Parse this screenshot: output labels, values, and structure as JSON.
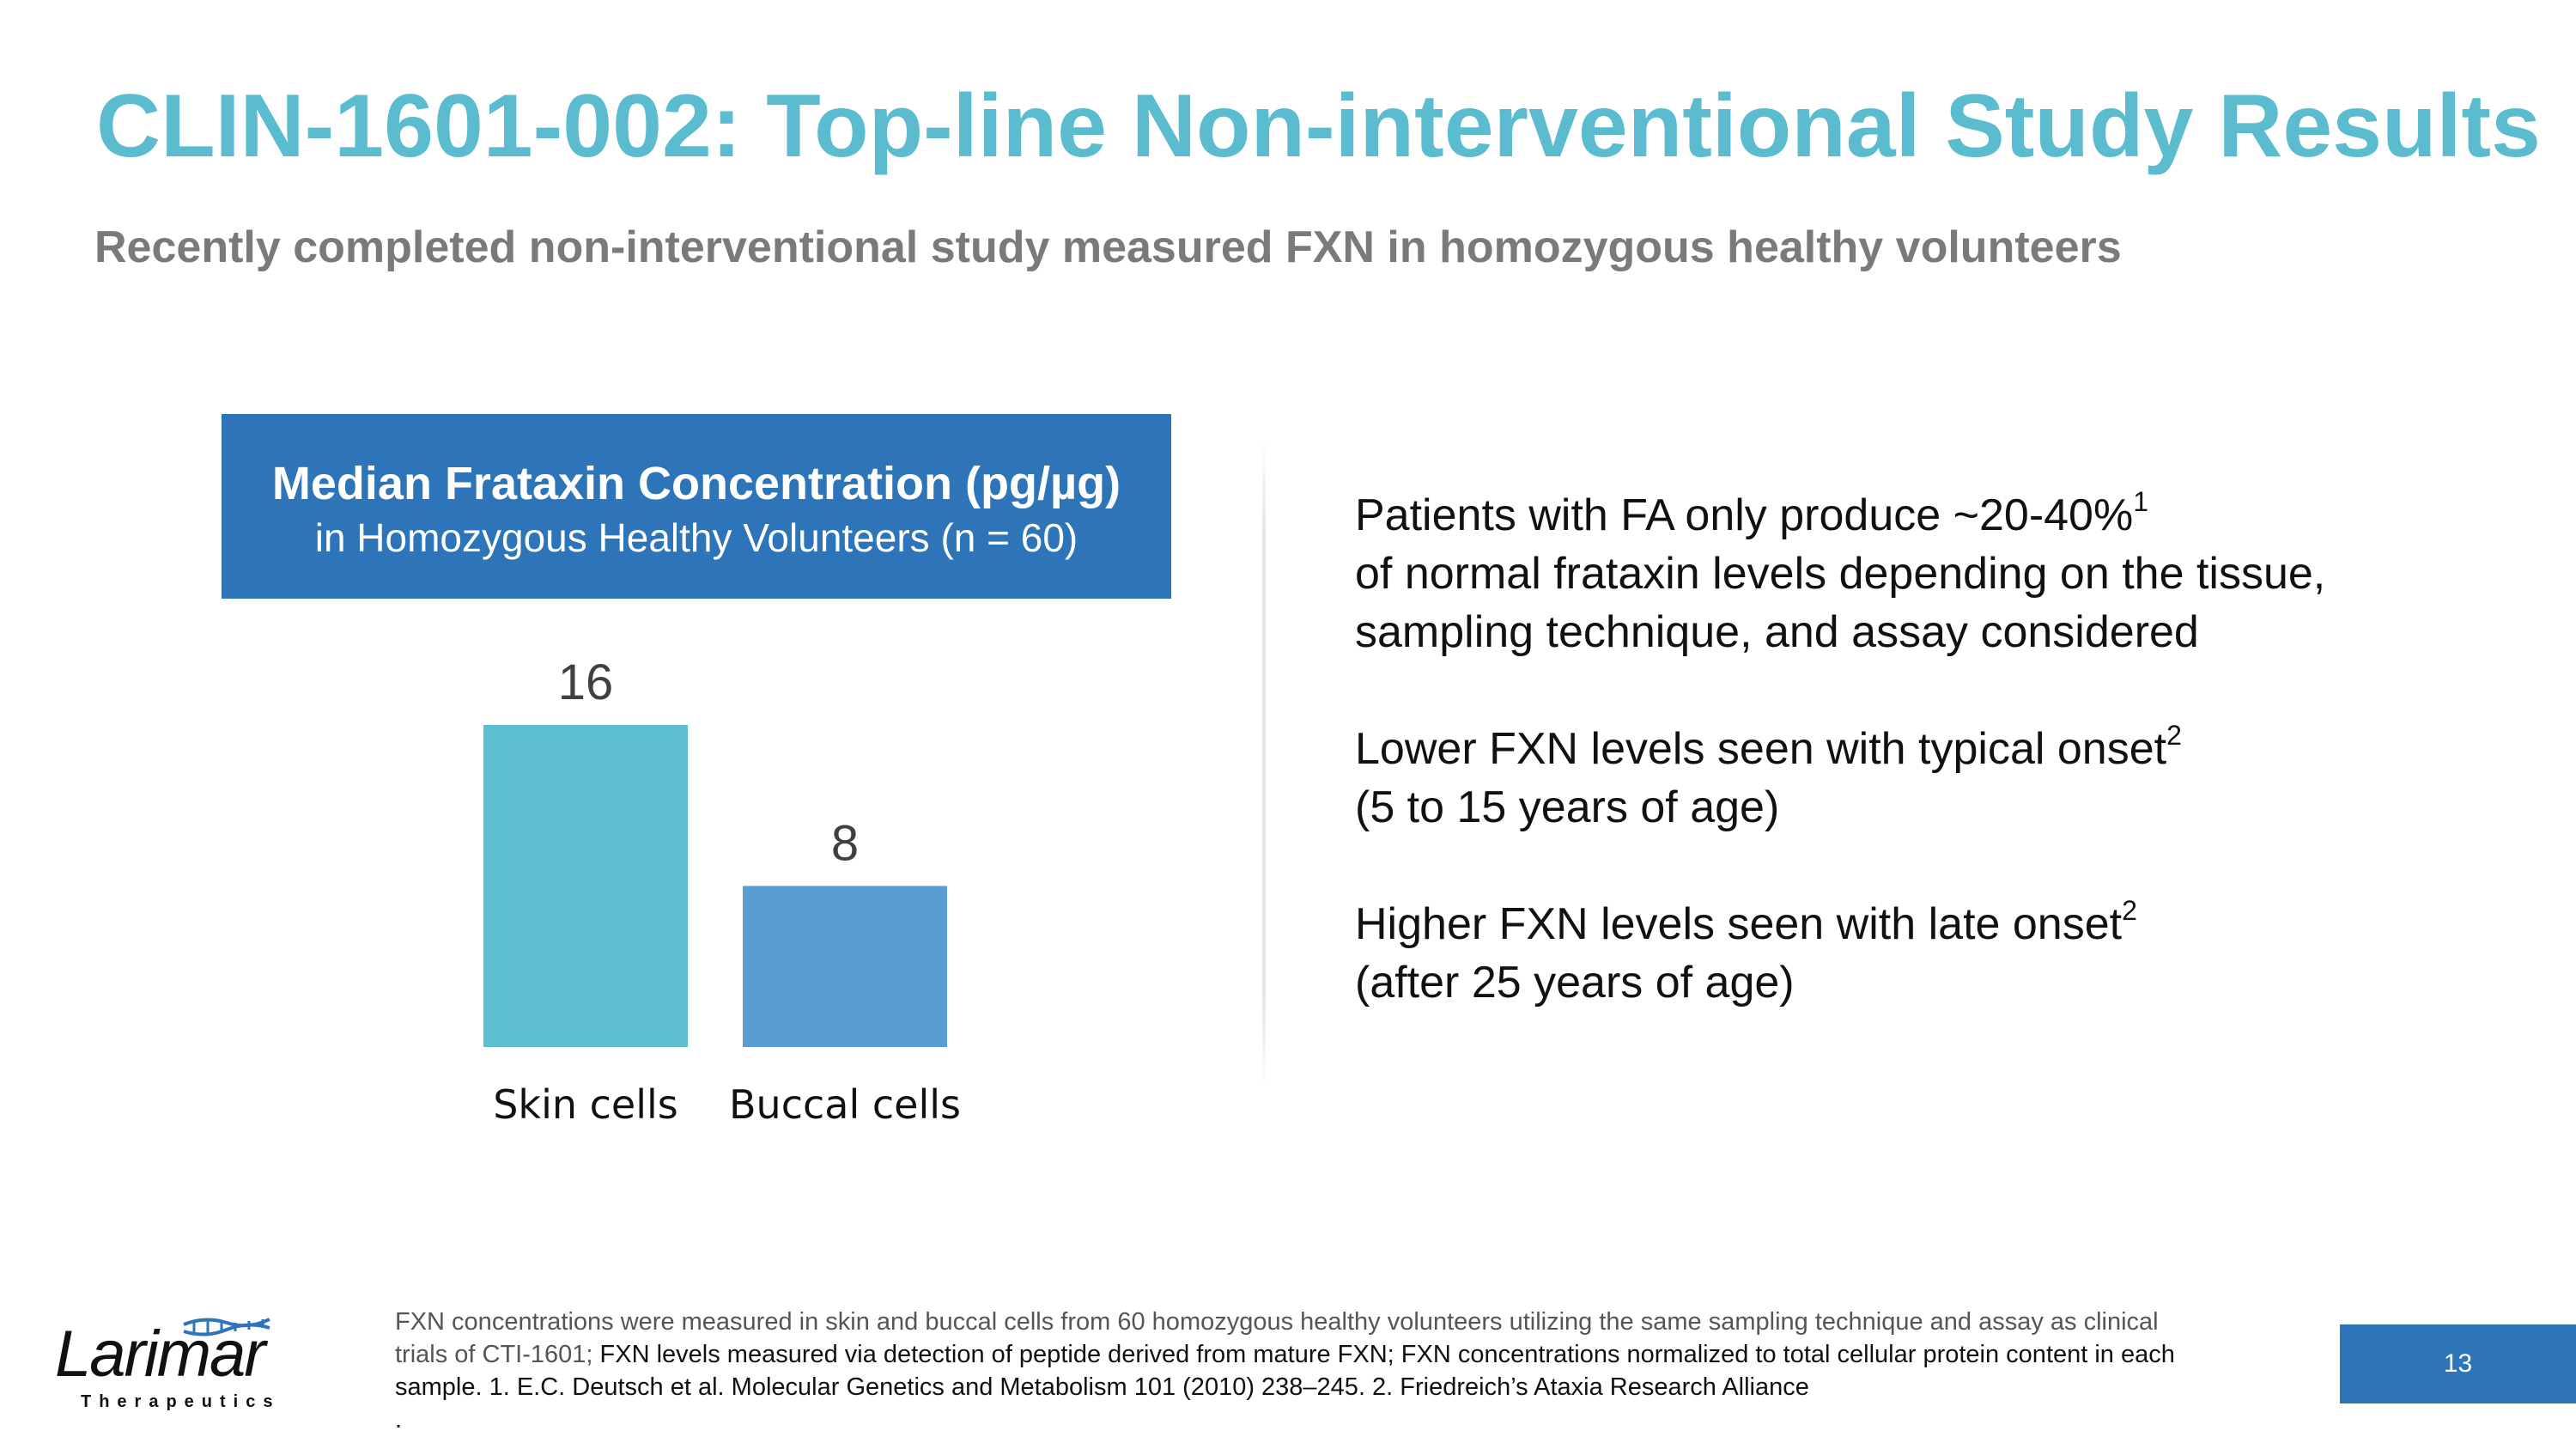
{
  "slide": {
    "title": "CLIN-1601-002: Top-line Non-interventional Study Results",
    "subtitle": "Recently completed non-interventional study measured FXN in homozygous healthy volunteers",
    "page_number": "13"
  },
  "chart_header": {
    "title": "Median Frataxin Concentration (pg/µg)",
    "subtitle": "in Homozygous Healthy Volunteers (n = 60)"
  },
  "chart_data": {
    "type": "bar",
    "title": "Median Frataxin Concentration (pg/µg)",
    "subtitle": "in Homozygous Healthy Volunteers (n = 60)",
    "categories": [
      "Skin cells",
      "Buccal cells"
    ],
    "values": [
      16,
      8
    ],
    "colors": [
      "#5fbed2",
      "#5b9bd4"
    ],
    "xlabel": "",
    "ylabel": "",
    "ylim": [
      0,
      16
    ],
    "grid": false,
    "legend": "none"
  },
  "bullets": [
    {
      "text": "Patients with FA only produce ~20-40%",
      "sup": "1",
      "text2": " of normal frataxin levels depending on the tissue, sampling technique, and assay considered"
    },
    {
      "text": "Lower FXN levels seen with typical onset",
      "sup": "2",
      "text2": " (5 to 15 years of age)"
    },
    {
      "text": "Higher FXN levels seen with late onset",
      "sup": "2",
      "text2": " (after 25 years of age)"
    }
  ],
  "footnote": {
    "part1": "FXN concentrations were measured in skin and buccal cells from 60 homozygous healthy volunteers utilizing the same sampling technique and assay as clinical trials of CTI-1601; ",
    "part2": "FXN levels measured via detection of peptide derived from mature FXN; FXN concentrations normalized to total cellular protein content in each sample. 1. E.C. Deutsch et al. Molecular Genetics and Metabolism 101 (2010) 238–245. 2. Friedreich’s Ataxia Research Alliance",
    "part3": "."
  },
  "logo": {
    "name": "Larimar",
    "tagline": "Therapeutics"
  },
  "colors": {
    "title": "#5bbccf",
    "accent_blue": "#2d74b8",
    "skin_bar": "#5fbed2",
    "buccal_bar": "#5b9bd4"
  }
}
